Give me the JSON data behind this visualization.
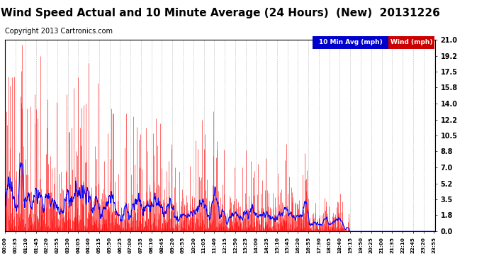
{
  "title": "Wind Speed Actual and 10 Minute Average (24 Hours)  (New)  20131226",
  "copyright": "Copyright 2013 Cartronics.com",
  "legend_labels": [
    "10 Min Avg (mph)",
    "Wind (mph)"
  ],
  "legend_colors": [
    "#0000cc",
    "#cc0000"
  ],
  "yticks": [
    0.0,
    1.8,
    3.5,
    5.2,
    7.0,
    8.8,
    10.5,
    12.2,
    14.0,
    15.8,
    17.5,
    19.2,
    21.0
  ],
  "ymax": 21.0,
  "ymin": 0.0,
  "bg_color": "#ffffff",
  "plot_bg_color": "#ffffff",
  "grid_color": "#aaaaaa",
  "title_fontsize": 11,
  "copyright_fontsize": 7,
  "wind_color": "#ff0000",
  "avg_color": "#0000ff",
  "seed": 99
}
